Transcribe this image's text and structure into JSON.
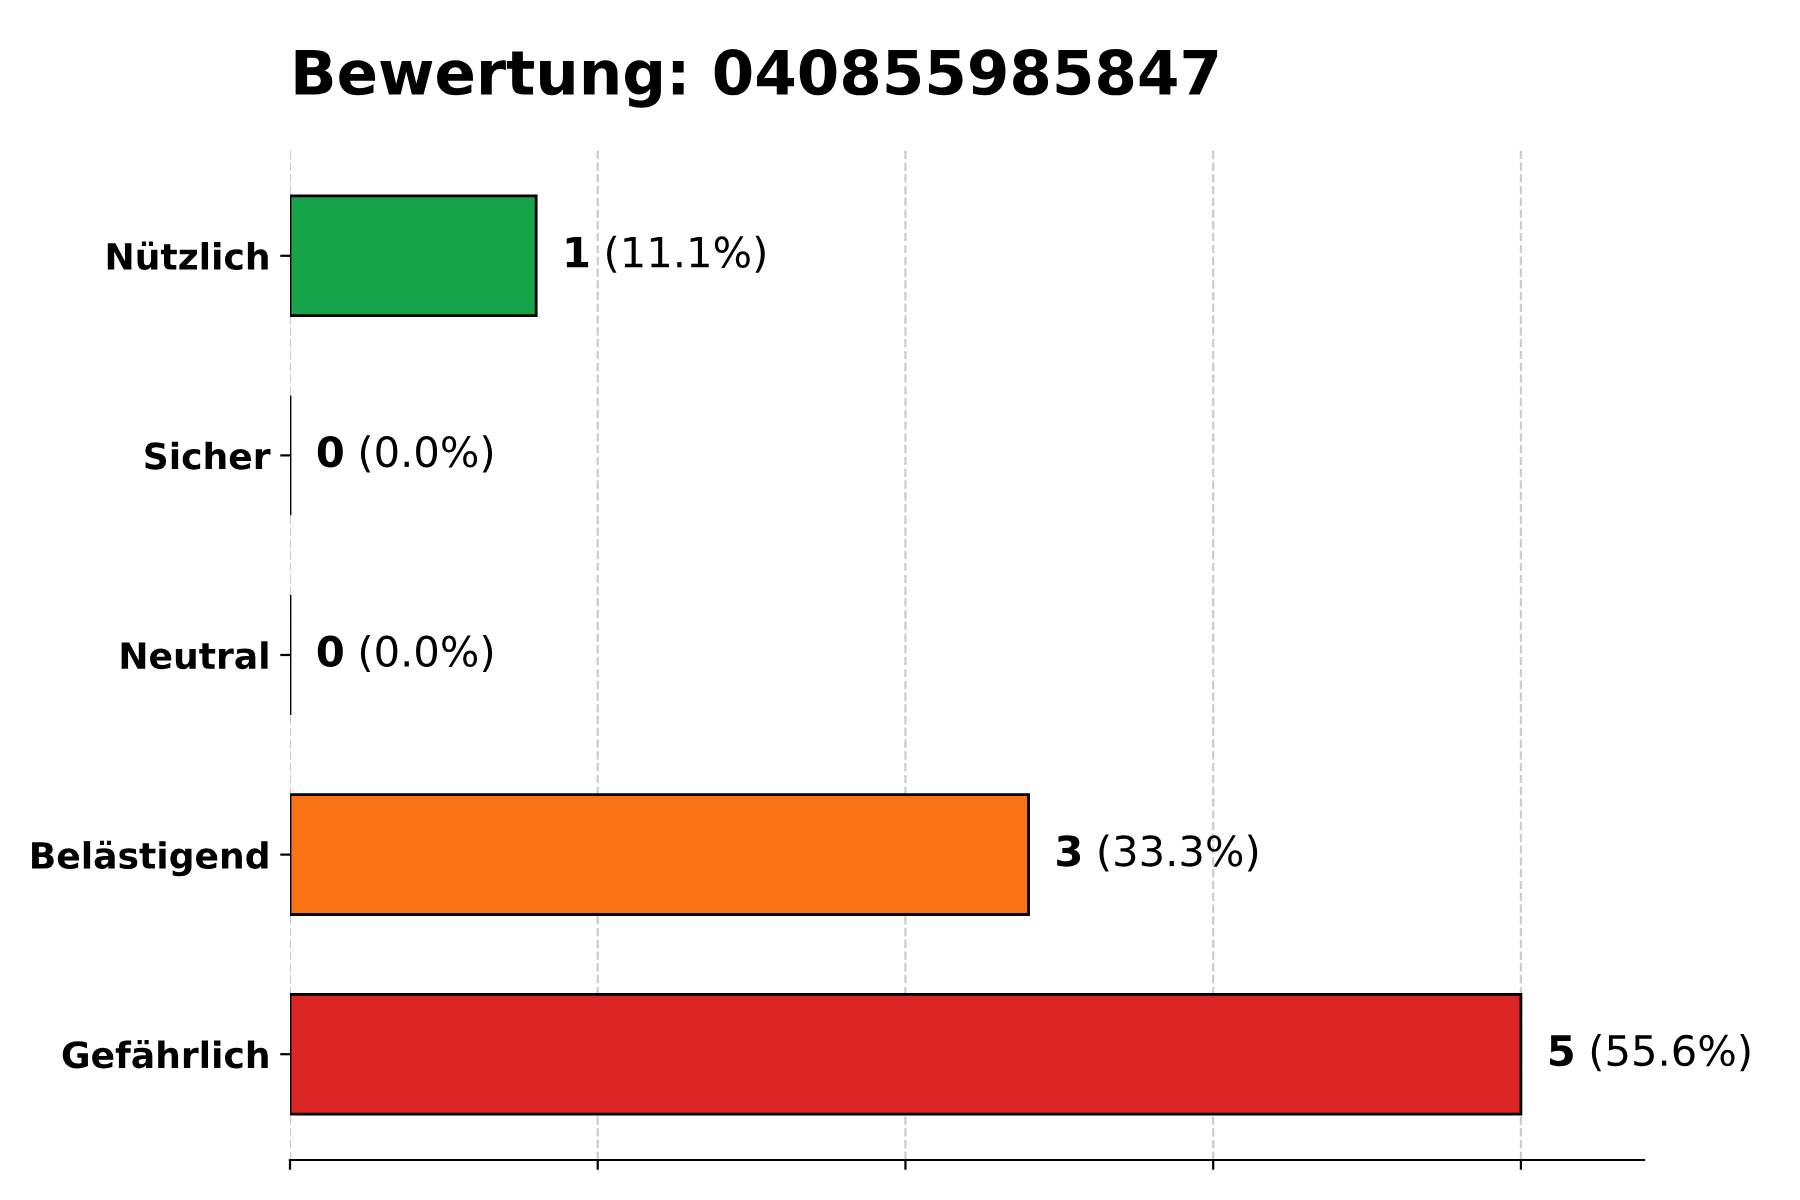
{
  "chart_data": {
    "type": "bar",
    "orientation": "horizontal",
    "title": "Bewertung: 040855985847",
    "categories": [
      "Nützlich",
      "Sicher",
      "Neutral",
      "Belästigend",
      "Gefährlich"
    ],
    "values": [
      1,
      0,
      0,
      3,
      5
    ],
    "colors": [
      "#16a34a",
      "#000000",
      "#000000",
      "#f97316",
      "#dc2626"
    ],
    "value_labels": [
      "1 (11.1%)",
      "0 (0.0%)",
      "0 (0.0%)",
      "3 (33.3%)",
      "5 (55.6%)"
    ],
    "xlim": [
      0,
      5.5
    ],
    "xticks": [
      {
        "value": 0,
        "label": null
      },
      {
        "value": 1.25,
        "label": null
      },
      {
        "value": 2.5,
        "label": null
      },
      {
        "value": 3.75,
        "label": null
      },
      {
        "value": 5,
        "label": null
      }
    ],
    "tick_labels": "y",
    "grid": "x"
  }
}
